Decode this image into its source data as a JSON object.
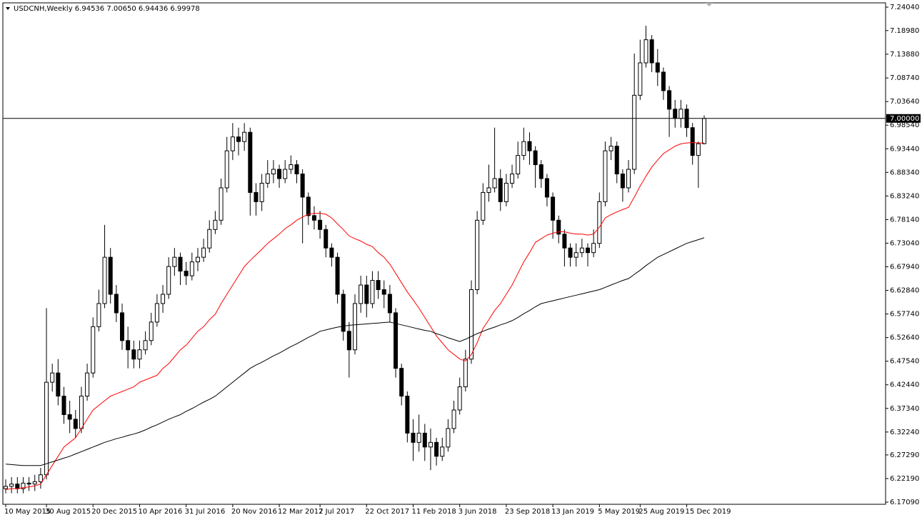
{
  "chart_data": {
    "type": "candlestick",
    "title": "USDCNH,Weekly  6.94536 7.00650 6.94436 6.99978",
    "categories": [
      "10 May 2015",
      null,
      null,
      null,
      null,
      null,
      null,
      "30 Aug 2015",
      null,
      null,
      null,
      null,
      null,
      null,
      null,
      "20 Dec 2015",
      null,
      null,
      null,
      null,
      null,
      null,
      null,
      "10 Apr 2016",
      null,
      null,
      null,
      null,
      null,
      null,
      null,
      "31 Jul 2016",
      null,
      null,
      null,
      null,
      null,
      null,
      null,
      "20 Nov 2016",
      null,
      null,
      null,
      null,
      null,
      null,
      null,
      "12 Mar 2017",
      null,
      null,
      null,
      null,
      null,
      null,
      "2 Jul 2017",
      null,
      null,
      null,
      null,
      null,
      null,
      null,
      "22 Oct 2017",
      null,
      null,
      null,
      null,
      null,
      null,
      null,
      "11 Feb 2018",
      null,
      null,
      null,
      null,
      null,
      null,
      null,
      "3 Jun 2018",
      null,
      null,
      null,
      null,
      null,
      null,
      null,
      "23 Sep 2018",
      null,
      null,
      null,
      null,
      null,
      null,
      null,
      "13 Jan 2019",
      null,
      null,
      null,
      null,
      null,
      null,
      null,
      "5 May 2019",
      null,
      null,
      null,
      null,
      null,
      null,
      "25 Aug 2019",
      null,
      null,
      null,
      null,
      null,
      null,
      null,
      "15 Dec 2019",
      null,
      null,
      null
    ],
    "open": [
      6.2,
      6.205,
      6.21,
      6.2,
      6.212,
      6.21,
      6.215,
      6.23,
      6.43,
      6.45,
      6.4,
      6.36,
      6.35,
      6.33,
      6.4,
      6.45,
      6.55,
      6.6,
      6.7,
      6.62,
      6.58,
      6.52,
      6.5,
      6.48,
      6.5,
      6.52,
      6.56,
      6.6,
      6.62,
      6.68,
      6.7,
      6.67,
      6.66,
      6.69,
      6.7,
      6.72,
      6.76,
      6.78,
      6.85,
      6.93,
      6.96,
      6.95,
      6.97,
      6.84,
      6.82,
      6.86,
      6.88,
      6.89,
      6.87,
      6.89,
      6.9,
      6.88,
      6.83,
      6.79,
      6.78,
      6.76,
      6.72,
      6.7,
      6.62,
      6.54,
      6.5,
      6.6,
      6.64,
      6.6,
      6.65,
      6.63,
      6.62,
      6.58,
      6.46,
      6.4,
      6.32,
      6.3,
      6.32,
      6.29,
      6.3,
      6.27,
      6.29,
      6.33,
      6.37,
      6.42,
      6.48,
      6.63,
      6.78,
      6.84,
      6.85,
      6.87,
      6.82,
      6.86,
      6.88,
      6.92,
      6.95,
      6.93,
      6.9,
      6.87,
      6.83,
      6.78,
      6.75,
      6.72,
      6.7,
      6.71,
      6.72,
      6.71,
      6.73,
      6.82,
      6.93,
      6.94,
      6.88,
      6.85,
      6.89,
      7.05,
      7.12,
      7.17,
      7.12,
      7.1,
      7.06,
      7.02,
      7.0,
      7.02,
      6.98,
      6.92,
      6.94536
    ],
    "high": [
      6.22,
      6.225,
      6.225,
      6.225,
      6.225,
      6.23,
      6.245,
      6.59,
      6.47,
      6.48,
      6.42,
      6.39,
      6.37,
      6.42,
      6.47,
      6.57,
      6.63,
      6.77,
      6.72,
      6.64,
      6.6,
      6.55,
      6.52,
      6.52,
      6.54,
      6.58,
      6.62,
      6.64,
      6.7,
      6.72,
      6.71,
      6.69,
      6.71,
      6.72,
      6.74,
      6.78,
      6.8,
      6.87,
      6.96,
      6.99,
      6.98,
      6.99,
      6.98,
      6.86,
      6.88,
      6.91,
      6.91,
      6.9,
      6.91,
      6.92,
      6.91,
      6.89,
      6.84,
      6.81,
      6.8,
      6.77,
      6.73,
      6.71,
      6.63,
      6.56,
      6.62,
      6.66,
      6.66,
      6.67,
      6.67,
      6.65,
      6.64,
      6.59,
      6.47,
      6.41,
      6.35,
      6.36,
      6.34,
      6.33,
      6.31,
      6.31,
      6.35,
      6.39,
      6.44,
      6.5,
      6.65,
      6.8,
      6.86,
      6.9,
      6.98,
      6.89,
      6.88,
      6.9,
      6.95,
      6.98,
      6.97,
      6.94,
      6.91,
      6.88,
      6.84,
      6.79,
      6.76,
      6.73,
      6.73,
      6.74,
      6.73,
      6.76,
      6.84,
      6.95,
      6.96,
      6.95,
      6.89,
      6.91,
      7.14,
      7.17,
      7.2,
      7.18,
      7.15,
      7.11,
      7.07,
      7.04,
      7.04,
      7.03,
      6.99,
      6.95,
      7.0065
    ],
    "low": [
      6.19,
      6.19,
      6.19,
      6.19,
      6.195,
      6.195,
      6.2,
      6.22,
      6.41,
      6.38,
      6.34,
      6.32,
      6.31,
      6.32,
      6.39,
      6.44,
      6.54,
      6.59,
      6.6,
      6.56,
      6.5,
      6.46,
      6.46,
      6.46,
      6.49,
      6.51,
      6.55,
      6.58,
      6.61,
      6.66,
      6.64,
      6.64,
      6.65,
      6.67,
      6.69,
      6.71,
      6.75,
      6.77,
      6.84,
      6.91,
      6.92,
      6.93,
      6.79,
      6.79,
      6.8,
      6.85,
      6.86,
      6.85,
      6.86,
      6.88,
      6.86,
      6.73,
      6.77,
      6.76,
      6.74,
      6.7,
      6.68,
      6.6,
      6.52,
      6.44,
      6.49,
      6.58,
      6.57,
      6.59,
      6.61,
      6.59,
      6.56,
      6.44,
      6.38,
      6.3,
      6.26,
      6.28,
      6.26,
      6.24,
      6.25,
      6.26,
      6.28,
      6.32,
      6.36,
      6.41,
      6.47,
      6.62,
      6.77,
      6.82,
      6.84,
      6.8,
      6.81,
      6.85,
      6.87,
      6.91,
      6.9,
      6.85,
      6.85,
      6.81,
      6.74,
      6.73,
      6.68,
      6.68,
      6.68,
      6.7,
      6.68,
      6.7,
      6.72,
      6.81,
      6.91,
      6.86,
      6.82,
      6.84,
      6.88,
      7.04,
      7.11,
      7.1,
      7.07,
      7.04,
      6.96,
      6.98,
      6.98,
      6.96,
      6.9,
      6.85,
      6.94436
    ],
    "close": [
      6.205,
      6.21,
      6.2,
      6.212,
      6.21,
      6.215,
      6.23,
      6.43,
      6.45,
      6.4,
      6.36,
      6.35,
      6.33,
      6.4,
      6.45,
      6.55,
      6.6,
      6.7,
      6.62,
      6.58,
      6.52,
      6.5,
      6.48,
      6.5,
      6.52,
      6.56,
      6.6,
      6.62,
      6.68,
      6.7,
      6.67,
      6.66,
      6.69,
      6.7,
      6.72,
      6.76,
      6.78,
      6.85,
      6.93,
      6.96,
      6.95,
      6.97,
      6.84,
      6.82,
      6.86,
      6.88,
      6.89,
      6.87,
      6.89,
      6.9,
      6.88,
      6.83,
      6.79,
      6.78,
      6.76,
      6.72,
      6.7,
      6.62,
      6.54,
      6.5,
      6.6,
      6.64,
      6.6,
      6.65,
      6.63,
      6.62,
      6.58,
      6.46,
      6.4,
      6.32,
      6.3,
      6.32,
      6.29,
      6.3,
      6.27,
      6.29,
      6.33,
      6.37,
      6.42,
      6.48,
      6.63,
      6.78,
      6.84,
      6.85,
      6.87,
      6.82,
      6.86,
      6.88,
      6.92,
      6.95,
      6.93,
      6.9,
      6.87,
      6.83,
      6.78,
      6.75,
      6.72,
      6.7,
      6.71,
      6.72,
      6.71,
      6.73,
      6.82,
      6.93,
      6.94,
      6.88,
      6.85,
      6.89,
      7.05,
      7.12,
      7.17,
      7.12,
      7.1,
      7.06,
      7.02,
      7.0,
      7.02,
      6.98,
      6.92,
      6.94536,
      6.99978
    ],
    "up_color": "#ffffff",
    "down_color": "#000000",
    "series": [
      {
        "color": "#ff0000",
        "values": [
          6.198,
          6.2,
          6.2,
          6.202,
          6.204,
          6.206,
          6.21,
          6.23,
          6.25,
          6.27,
          6.29,
          6.3,
          6.31,
          6.33,
          6.35,
          6.37,
          6.38,
          6.39,
          6.4,
          6.405,
          6.41,
          6.415,
          6.42,
          6.43,
          6.435,
          6.44,
          6.445,
          6.46,
          6.47,
          6.485,
          6.5,
          6.51,
          6.525,
          6.54,
          6.55,
          6.565,
          6.577,
          6.6,
          6.62,
          6.64,
          6.66,
          6.68,
          6.693,
          6.705,
          6.717,
          6.73,
          6.74,
          6.75,
          6.762,
          6.77,
          6.78,
          6.787,
          6.793,
          6.795,
          6.795,
          6.793,
          6.785,
          6.772,
          6.76,
          6.746,
          6.74,
          6.735,
          6.728,
          6.723,
          6.71,
          6.7,
          6.685,
          6.665,
          6.645,
          6.625,
          6.608,
          6.59,
          6.57,
          6.55,
          6.53,
          6.515,
          6.5,
          6.49,
          6.48,
          6.476,
          6.49,
          6.515,
          6.546,
          6.565,
          6.585,
          6.6,
          6.62,
          6.64,
          6.665,
          6.69,
          6.71,
          6.732,
          6.74,
          6.748,
          6.752,
          6.755,
          6.755,
          6.752,
          6.75,
          6.75,
          6.748,
          6.75,
          6.765,
          6.785,
          6.792,
          6.798,
          6.803,
          6.808,
          6.83,
          6.854,
          6.875,
          6.895,
          6.91,
          6.924,
          6.932,
          6.94,
          6.945,
          6.947,
          6.948,
          6.947,
          6.947
        ]
      },
      {
        "color": "#000000",
        "values": [
          6.253,
          6.252,
          6.251,
          6.25,
          6.25,
          6.25,
          6.25,
          6.254,
          6.258,
          6.262,
          6.266,
          6.27,
          6.275,
          6.28,
          6.285,
          6.29,
          6.295,
          6.3,
          6.304,
          6.308,
          6.311,
          6.315,
          6.318,
          6.322,
          6.327,
          6.333,
          6.338,
          6.344,
          6.35,
          6.355,
          6.36,
          6.367,
          6.373,
          6.38,
          6.387,
          6.393,
          6.4,
          6.41,
          6.42,
          6.43,
          6.44,
          6.45,
          6.46,
          6.467,
          6.473,
          6.48,
          6.487,
          6.493,
          6.5,
          6.507,
          6.513,
          6.52,
          6.527,
          6.533,
          6.54,
          6.543,
          6.546,
          6.549,
          6.551,
          6.553,
          6.554,
          6.555,
          6.556,
          6.557,
          6.558,
          6.559,
          6.56,
          6.557,
          6.554,
          6.551,
          6.548,
          6.545,
          6.542,
          6.54,
          6.535,
          6.531,
          6.526,
          6.522,
          6.518,
          6.523,
          6.529,
          6.535,
          6.54,
          6.545,
          6.549,
          6.554,
          6.558,
          6.563,
          6.57,
          6.578,
          6.585,
          6.593,
          6.6,
          6.603,
          6.606,
          6.609,
          6.612,
          6.615,
          6.618,
          6.621,
          6.624,
          6.627,
          6.63,
          6.635,
          6.64,
          6.645,
          6.65,
          6.654,
          6.663,
          6.672,
          6.682,
          6.691,
          6.7,
          6.706,
          6.712,
          6.718,
          6.724,
          6.73,
          6.734,
          6.738,
          6.742
        ]
      }
    ],
    "ylim": [
      6.1709,
      7.2404
    ],
    "yticks": [
      {
        "value": 7.2404,
        "label": "7.24040"
      },
      {
        "value": 7.1898,
        "label": "7.18980"
      },
      {
        "value": 7.1388,
        "label": "7.13880"
      },
      {
        "value": 7.0874,
        "label": "7.08740"
      },
      {
        "value": 7.0364,
        "label": "7.03640"
      },
      {
        "value": 6.9854,
        "label": "6.98540"
      },
      {
        "value": 6.9344,
        "label": "6.93440"
      },
      {
        "value": 6.8834,
        "label": "6.88340"
      },
      {
        "value": 6.8324,
        "label": "6.83240"
      },
      {
        "value": 6.7814,
        "label": "6.78140"
      },
      {
        "value": 6.7304,
        "label": "6.73040"
      },
      {
        "value": 6.6794,
        "label": "6.67940"
      },
      {
        "value": 6.6284,
        "label": "6.62840"
      },
      {
        "value": 6.5774,
        "label": "6.57740"
      },
      {
        "value": 6.5264,
        "label": "6.52640"
      },
      {
        "value": 6.4754,
        "label": "6.47540"
      },
      {
        "value": 6.4244,
        "label": "6.42440"
      },
      {
        "value": 6.3734,
        "label": "6.37340"
      },
      {
        "value": 6.3224,
        "label": "6.32240"
      },
      {
        "value": 6.2729,
        "label": "6.27290"
      },
      {
        "value": 6.2219,
        "label": "6.22190"
      },
      {
        "value": 6.1709,
        "label": "6.17090"
      }
    ],
    "price_line": {
      "value": 7,
      "label": "7.00000"
    }
  }
}
